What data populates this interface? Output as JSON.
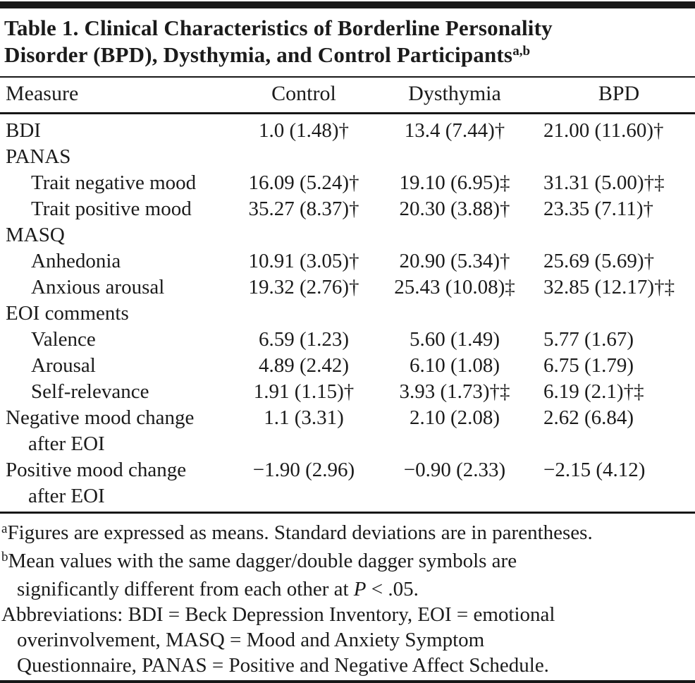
{
  "table": {
    "title_line1": "Table 1. Clinical Characteristics of Borderline Personality",
    "title_line2": "Disorder (BPD), Dysthymia, and Control Participants",
    "title_superscript": "a,b",
    "columns": [
      "Measure",
      "Control",
      "Dysthymia",
      "BPD"
    ],
    "rows": [
      {
        "label": "BDI",
        "control": "1.0 (1.48)†",
        "dysthymia": "13.4 (7.44)†",
        "bpd": "21.00 (11.60)†"
      },
      {
        "label": "PANAS",
        "control": "",
        "dysthymia": "",
        "bpd": ""
      },
      {
        "label": "Trait negative mood",
        "control": "16.09 (5.24)†",
        "dysthymia": "19.10 (6.95)‡",
        "bpd": "31.31 (5.00)†‡"
      },
      {
        "label": "Trait positive mood",
        "control": "35.27 (8.37)†",
        "dysthymia": "20.30 (3.88)†",
        "bpd": "23.35 (7.11)†"
      },
      {
        "label": "MASQ",
        "control": "",
        "dysthymia": "",
        "bpd": ""
      },
      {
        "label": "Anhedonia",
        "control": "10.91 (3.05)†",
        "dysthymia": "20.90 (5.34)†",
        "bpd": "25.69 (5.69)†"
      },
      {
        "label": "Anxious arousal",
        "control": "19.32 (2.76)†",
        "dysthymia": "25.43 (10.08)‡",
        "bpd": "32.85 (12.17)†‡"
      },
      {
        "label": "EOI comments",
        "control": "",
        "dysthymia": "",
        "bpd": ""
      },
      {
        "label": "Valence",
        "control": "6.59 (1.23)",
        "dysthymia": "5.60 (1.49)",
        "bpd": "5.77 (1.67)"
      },
      {
        "label": "Arousal",
        "control": "4.89 (2.42)",
        "dysthymia": "6.10 (1.08)",
        "bpd": "6.75 (1.79)"
      },
      {
        "label": "Self-relevance",
        "control": "1.91 (1.15)†",
        "dysthymia": "3.93 (1.73)†‡",
        "bpd": "6.19 (2.1)†‡"
      },
      {
        "label": "Negative mood change",
        "label2": "after EOI",
        "control": "1.1 (3.31)",
        "dysthymia": "2.10 (2.08)",
        "bpd": "2.62 (6.84)"
      },
      {
        "label": "Positive mood change",
        "label2": "after EOI",
        "control": "−1.90 (2.96)",
        "dysthymia": "−0.90 (2.33)",
        "bpd": "−2.15 (4.12)"
      }
    ]
  },
  "footnotes": {
    "a_marker": "a",
    "a_text": "Figures are expressed as means. Standard deviations are in parentheses.",
    "b_marker": "b",
    "b_line1": "Mean values with the same dagger/double dagger symbols are",
    "b_line2_pre": "significantly different from each other at ",
    "b_line2_italic": "P",
    "b_line2_post": " < .05.",
    "abbrev_line1": "Abbreviations: BDI = Beck Depression Inventory, EOI = emotional",
    "abbrev_line2": "overinvolvement, MASQ = Mood and Anxiety Symptom",
    "abbrev_line3": "Questionnaire, PANAS = Positive and Negative Affect Schedule."
  }
}
